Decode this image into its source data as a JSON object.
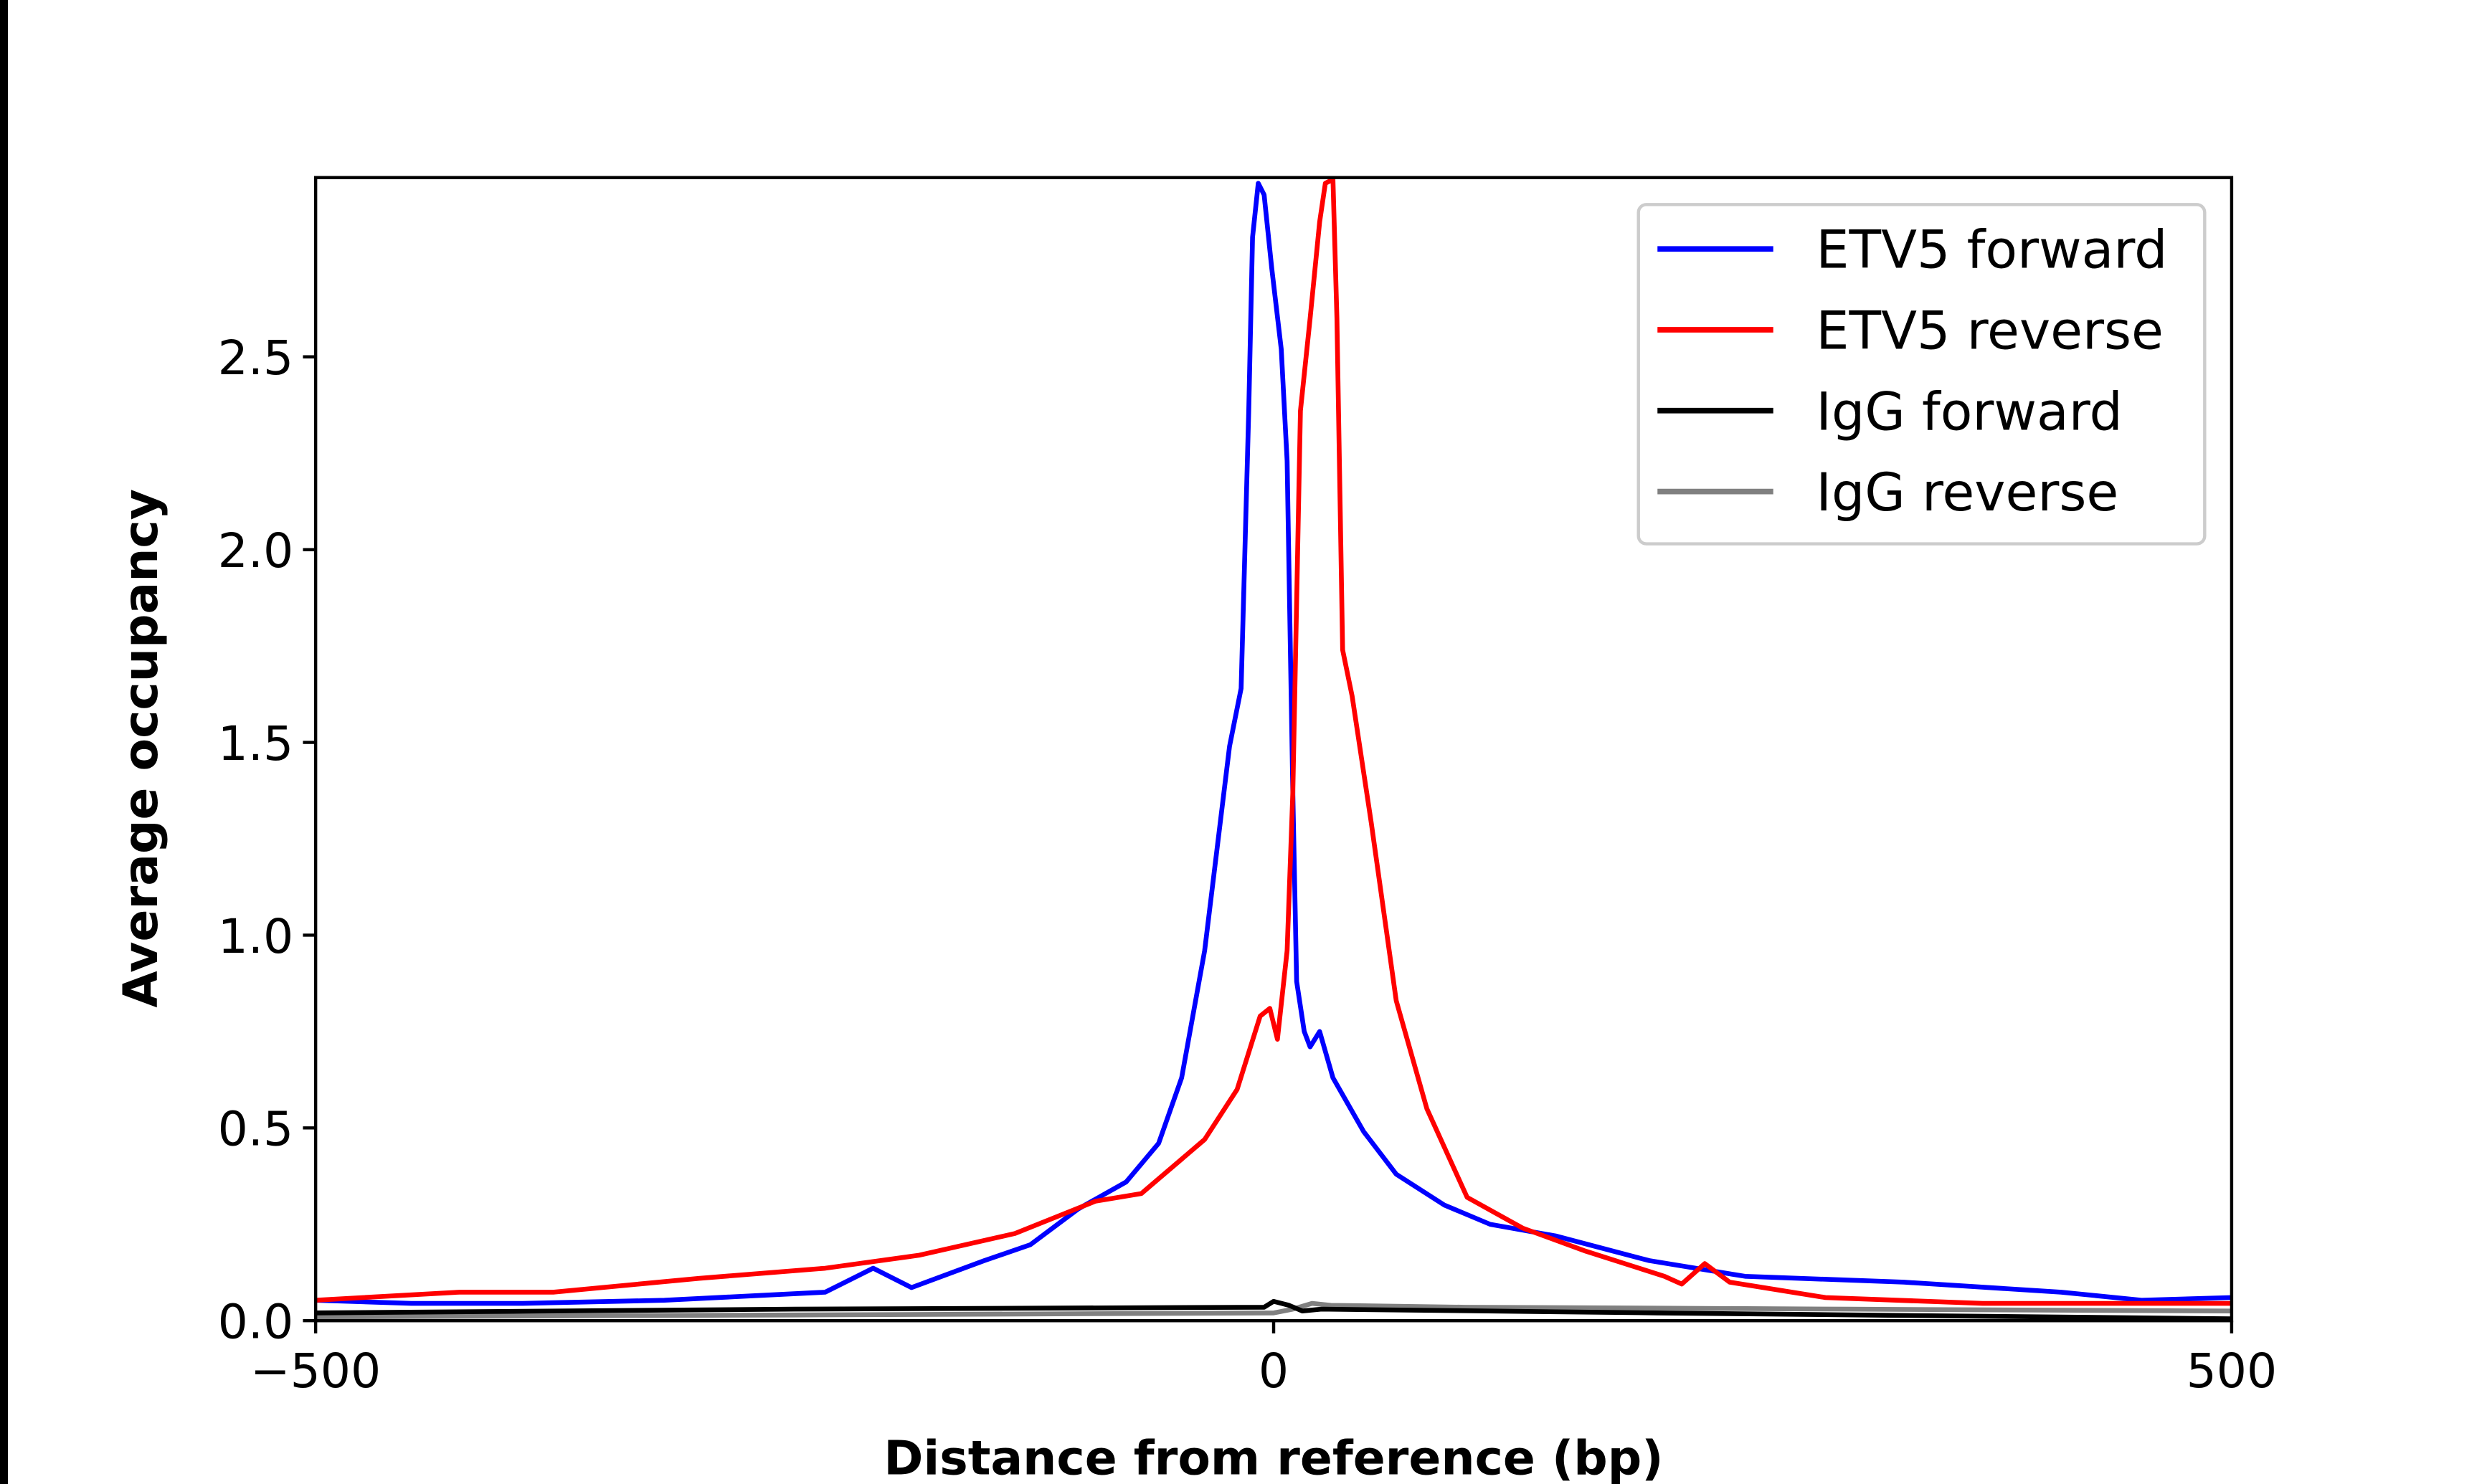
{
  "chart_data": {
    "type": "line",
    "title": "",
    "xlabel": "Distance from reference (bp)",
    "ylabel": "Average occupancy",
    "xlim": [
      -500,
      500
    ],
    "ylim": [
      0,
      2.965
    ],
    "xticks": [
      -500,
      0,
      500
    ],
    "xtick_labels": [
      "−500",
      "0",
      "500"
    ],
    "yticks": [
      0,
      0.5,
      1,
      1.5,
      2,
      2.5
    ],
    "ytick_labels": [
      "0.0",
      "0.5",
      "1.0",
      "1.5",
      "2.0",
      "2.5"
    ],
    "grid": false,
    "legend_position": "top-right",
    "series": [
      {
        "name": "ETV5 forward",
        "color": "#0000ff",
        "x": [
          -500,
          -450,
          -392,
          -318,
          -234,
          -209,
          -189,
          -151,
          -127,
          -102,
          -77,
          -60,
          -48,
          -36,
          -23,
          -17,
          -13,
          -11,
          -8,
          -5,
          -1,
          4,
          7,
          10,
          12,
          16,
          19,
          24,
          31,
          47,
          64,
          89,
          113,
          147,
          196,
          246,
          329,
          411,
          453,
          500
        ],
        "y": [
          0.053,
          0.045,
          0.045,
          0.053,
          0.074,
          0.136,
          0.086,
          0.156,
          0.197,
          0.29,
          0.36,
          0.46,
          0.63,
          0.96,
          1.49,
          1.64,
          2.36,
          2.81,
          2.95,
          2.92,
          2.73,
          2.52,
          2.23,
          1.37,
          0.88,
          0.75,
          0.71,
          0.75,
          0.63,
          0.49,
          0.38,
          0.3,
          0.25,
          0.22,
          0.156,
          0.115,
          0.1,
          0.074,
          0.053,
          0.06
        ]
      },
      {
        "name": "ETV5 reverse",
        "color": "#ff0000",
        "x": [
          -500,
          -425,
          -376,
          -300,
          -234,
          -185,
          -135,
          -93,
          -69,
          -36,
          -19,
          -7,
          -2,
          2,
          7,
          10,
          14,
          19,
          24,
          27,
          31,
          33,
          36,
          41,
          51,
          64,
          80,
          101,
          130,
          163,
          204,
          213,
          225,
          238,
          288,
          370,
          500
        ],
        "y": [
          0.053,
          0.074,
          0.074,
          0.11,
          0.136,
          0.17,
          0.226,
          0.31,
          0.33,
          0.47,
          0.6,
          0.79,
          0.81,
          0.73,
          0.96,
          1.37,
          2.36,
          2.6,
          2.85,
          2.95,
          2.96,
          2.6,
          1.74,
          1.62,
          1.29,
          0.83,
          0.55,
          0.32,
          0.24,
          0.18,
          0.115,
          0.095,
          0.148,
          0.1,
          0.06,
          0.045,
          0.045
        ]
      },
      {
        "name": "IgG forward",
        "color": "#000000",
        "x": [
          -500,
          -250,
          -5,
          0,
          8,
          15,
          25,
          200,
          500
        ],
        "y": [
          0.02,
          0.03,
          0.035,
          0.05,
          0.04,
          0.025,
          0.03,
          0.02,
          0.005
        ]
      },
      {
        "name": "IgG reverse",
        "color": "#808080",
        "x": [
          -500,
          -250,
          0,
          10,
          20,
          30,
          100,
          300,
          500
        ],
        "y": [
          0.01,
          0.015,
          0.02,
          0.03,
          0.045,
          0.04,
          0.035,
          0.03,
          0.025
        ]
      }
    ]
  }
}
